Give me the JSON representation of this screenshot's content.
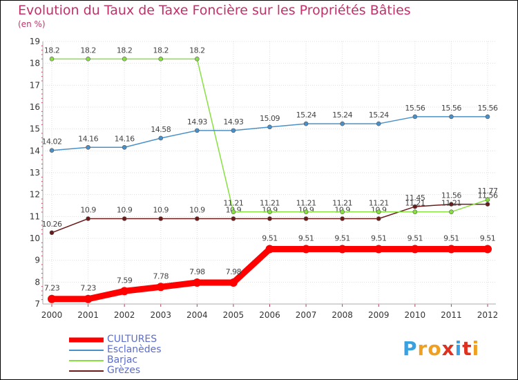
{
  "chart_data": {
    "type": "line",
    "title": "Evolution du Taux de Taxe Foncière sur les Propriétés Bâties",
    "ylabel": "(en %)",
    "xlabel": "",
    "x": [
      "2000",
      "2001",
      "2002",
      "2003",
      "2004",
      "2005",
      "2006",
      "2007",
      "2008",
      "2009",
      "2010",
      "2011",
      "2012"
    ],
    "ylim": [
      7,
      19
    ],
    "yticks": [
      7,
      8,
      9,
      10,
      11,
      12,
      13,
      14,
      15,
      16,
      17,
      18,
      19
    ],
    "series": [
      {
        "name": "CULTURES",
        "color": "#ff0000",
        "values": [
          7.23,
          7.23,
          7.59,
          7.78,
          7.98,
          7.98,
          9.51,
          9.51,
          9.51,
          9.51,
          9.51,
          9.51,
          9.51
        ],
        "labels": [
          "7.23",
          "7.23",
          "7.59",
          "7.78",
          "7.98",
          "7.98",
          "9.51",
          "9.51",
          "9.51",
          "9.51",
          "9.51",
          "9.51",
          "9.51"
        ]
      },
      {
        "name": "Esclanèdes",
        "color": "#4a90c8",
        "values": [
          14.02,
          14.16,
          14.16,
          14.58,
          14.93,
          14.93,
          15.09,
          15.24,
          15.24,
          15.24,
          15.56,
          15.56,
          15.56
        ],
        "labels": [
          "14.02",
          "14.16",
          "14.16",
          "14.58",
          "14.93",
          "14.93",
          "15.09",
          "15.24",
          "15.24",
          "15.24",
          "15.56",
          "15.56",
          "15.56"
        ]
      },
      {
        "name": "Barjac",
        "color": "#88e040",
        "values": [
          18.2,
          18.2,
          18.2,
          18.2,
          18.2,
          11.21,
          11.21,
          11.21,
          11.21,
          11.21,
          11.21,
          11.21,
          11.77
        ],
        "labels": [
          "18.2",
          "18.2",
          "18.2",
          "18.2",
          "18.2",
          "11.21",
          "11.21",
          "11.21",
          "11.21",
          "11.21",
          "11.21",
          "11.21",
          "11.77"
        ]
      },
      {
        "name": "Grèzes",
        "color": "#6b1a1a",
        "values": [
          10.26,
          10.9,
          10.9,
          10.9,
          10.9,
          10.9,
          10.9,
          10.9,
          10.9,
          10.9,
          11.45,
          11.56,
          11.56
        ],
        "labels": [
          "10.26",
          "10.9",
          "10.9",
          "10.9",
          "10.9",
          "10.9",
          "10.9",
          "10.9",
          "10.9",
          "10.9",
          "11.45",
          "11.56",
          "11.56"
        ]
      }
    ],
    "legend": {
      "position": "bottom-left",
      "items": [
        "CULTURES",
        "Esclanèdes",
        "Barjac",
        "Grèzes"
      ]
    }
  },
  "logo": {
    "letters": [
      "P",
      "r",
      "o",
      "x",
      "i",
      "t",
      "i"
    ],
    "colors": [
      "#3aa0e0",
      "#f0a020",
      "#f0a020",
      "#e03020",
      "#3aa0e0",
      "#e03020",
      "#f0a020"
    ]
  }
}
